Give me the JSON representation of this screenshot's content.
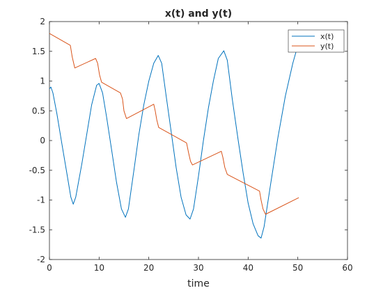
{
  "chart_data": {
    "type": "line",
    "title": "x(t) and y(t)",
    "xlabel": "time",
    "ylabel": "",
    "xlim": [
      0,
      60
    ],
    "ylim": [
      -2,
      2
    ],
    "xticks": [
      0,
      10,
      20,
      30,
      40,
      50,
      60
    ],
    "yticks": [
      -2,
      -1.5,
      -1,
      -0.5,
      0,
      0.5,
      1,
      1.5,
      2
    ],
    "ytick_labels": [
      "-2",
      "-1.5",
      "-1",
      "-0.5",
      "0",
      "0.5",
      "1",
      "1.5",
      "2"
    ],
    "grid": false,
    "legend_position": "top-right",
    "series": [
      {
        "name": "x(t)",
        "color": "#0072BD",
        "points": [
          [
            0,
            0.87
          ],
          [
            0.3,
            0.9
          ],
          [
            0.7,
            0.8
          ],
          [
            1.5,
            0.45
          ],
          [
            2.5,
            -0.05
          ],
          [
            3.5,
            -0.55
          ],
          [
            4.3,
            -0.95
          ],
          [
            4.8,
            -1.07
          ],
          [
            5.3,
            -0.95
          ],
          [
            6.5,
            -0.4
          ],
          [
            7.5,
            0.1
          ],
          [
            8.5,
            0.6
          ],
          [
            9.5,
            0.93
          ],
          [
            10.0,
            0.96
          ],
          [
            10.7,
            0.8
          ],
          [
            11.5,
            0.4
          ],
          [
            12.5,
            -0.15
          ],
          [
            13.5,
            -0.7
          ],
          [
            14.5,
            -1.15
          ],
          [
            15.3,
            -1.29
          ],
          [
            15.9,
            -1.15
          ],
          [
            17,
            -0.5
          ],
          [
            18,
            0.1
          ],
          [
            19,
            0.6
          ],
          [
            20,
            1.0
          ],
          [
            21,
            1.3
          ],
          [
            21.9,
            1.43
          ],
          [
            22.6,
            1.3
          ],
          [
            23.5,
            0.75
          ],
          [
            24.5,
            0.15
          ],
          [
            25.5,
            -0.45
          ],
          [
            26.5,
            -0.95
          ],
          [
            27.5,
            -1.25
          ],
          [
            28.3,
            -1.32
          ],
          [
            29,
            -1.15
          ],
          [
            30,
            -0.6
          ],
          [
            31,
            0.0
          ],
          [
            32,
            0.55
          ],
          [
            33,
            1.0
          ],
          [
            34,
            1.38
          ],
          [
            35.1,
            1.51
          ],
          [
            35.8,
            1.35
          ],
          [
            36.8,
            0.7
          ],
          [
            38,
            0.0
          ],
          [
            39,
            -0.55
          ],
          [
            40,
            -1.05
          ],
          [
            41,
            -1.4
          ],
          [
            42,
            -1.6
          ],
          [
            42.6,
            -1.64
          ],
          [
            43.2,
            -1.45
          ],
          [
            44.5,
            -0.75
          ],
          [
            46,
            0.05
          ],
          [
            47.5,
            0.75
          ],
          [
            49,
            1.3
          ],
          [
            50,
            1.6
          ],
          [
            50.5,
            1.65
          ]
        ]
      },
      {
        "name": "y(t)",
        "color": "#D95319",
        "points": [
          [
            0,
            1.8
          ],
          [
            4.2,
            1.6
          ],
          [
            4.6,
            1.4
          ],
          [
            5.1,
            1.22
          ],
          [
            9.3,
            1.38
          ],
          [
            9.7,
            1.3
          ],
          [
            10.1,
            1.1
          ],
          [
            10.5,
            0.98
          ],
          [
            14.3,
            0.8
          ],
          [
            14.7,
            0.7
          ],
          [
            15.0,
            0.5
          ],
          [
            15.5,
            0.37
          ],
          [
            21.0,
            0.61
          ],
          [
            21.3,
            0.5
          ],
          [
            21.6,
            0.35
          ],
          [
            22.0,
            0.22
          ],
          [
            27.6,
            -0.04
          ],
          [
            28.0,
            -0.2
          ],
          [
            28.4,
            -0.35
          ],
          [
            28.8,
            -0.41
          ],
          [
            34.6,
            -0.18
          ],
          [
            34.9,
            -0.28
          ],
          [
            35.3,
            -0.45
          ],
          [
            35.8,
            -0.57
          ],
          [
            42.3,
            -0.85
          ],
          [
            42.6,
            -1.0
          ],
          [
            43.0,
            -1.15
          ],
          [
            43.5,
            -1.24
          ],
          [
            50.2,
            -0.96
          ]
        ]
      }
    ]
  }
}
